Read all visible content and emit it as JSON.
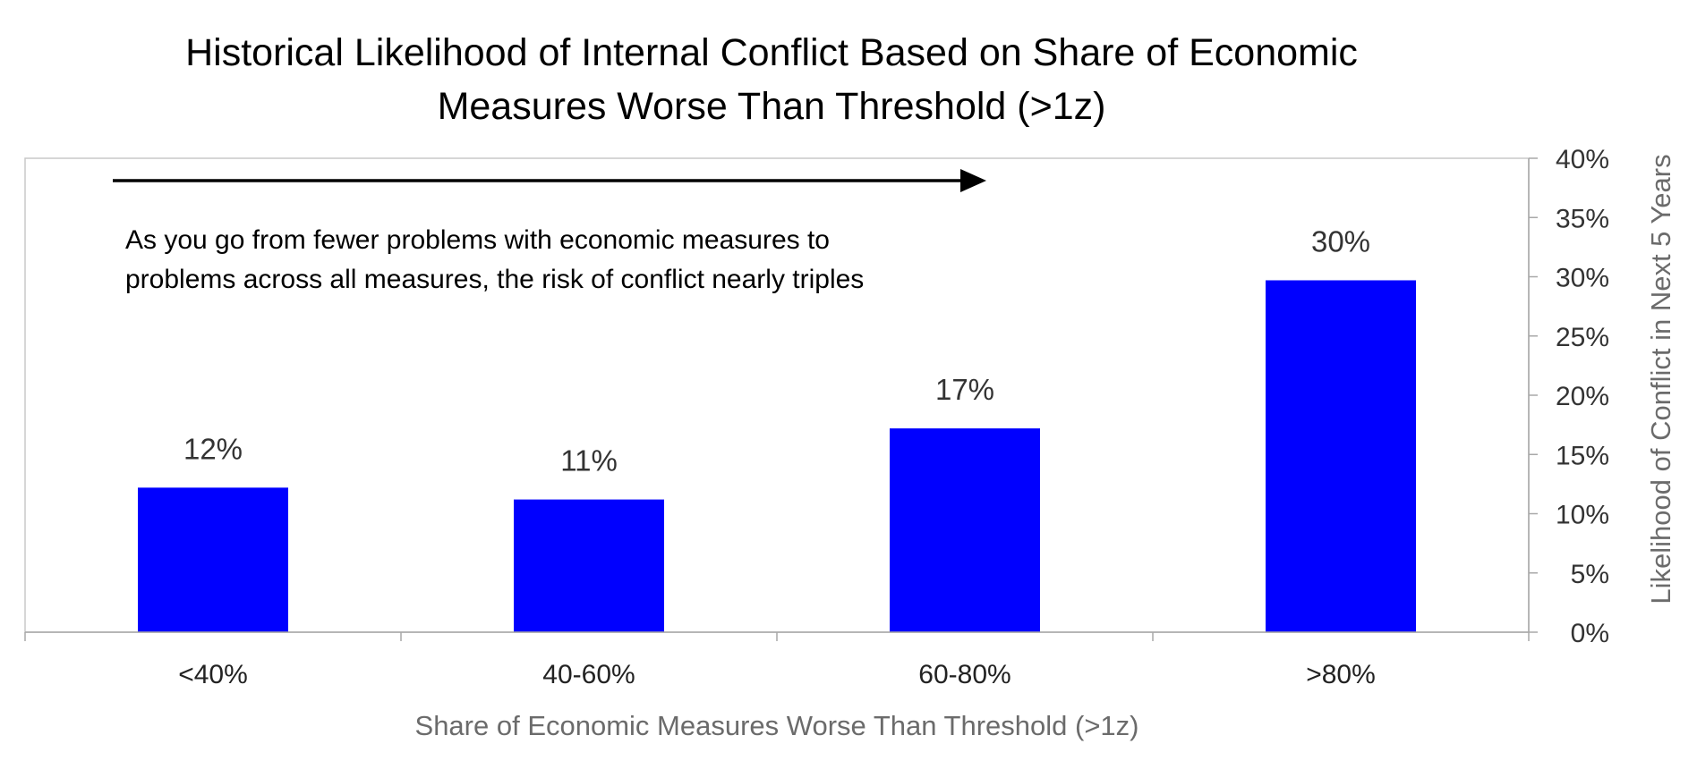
{
  "chart_data": {
    "type": "bar",
    "title_lines": [
      "Historical Likelihood of Internal Conflict Based on Share of Economic",
      "Measures Worse Than Threshold (>1z)"
    ],
    "annotation_lines": [
      "As you go from fewer problems with economic measures to",
      "problems across all measures, the risk of conflict nearly triples"
    ],
    "categories": [
      "<40%",
      "40-60%",
      "60-80%",
      ">80%"
    ],
    "values": [
      0.122,
      0.112,
      0.172,
      0.297
    ],
    "data_labels": [
      "12%",
      "11%",
      "17%",
      "30%"
    ],
    "bar_color": "#0000ff",
    "xlabel": "Share of Economic Measures Worse Than Threshold (>1z)",
    "ylabel": "Likelihood of Conflict in Next 5 Years",
    "ylim": [
      0,
      0.4
    ],
    "y_ticks": [
      0,
      0.05,
      0.1,
      0.15,
      0.2,
      0.25,
      0.3,
      0.35,
      0.4
    ],
    "y_tick_labels": [
      "0%",
      "5%",
      "10%",
      "15%",
      "20%",
      "25%",
      "30%",
      "35%",
      "40%"
    ],
    "y_axis_side": "right",
    "grid": false,
    "legend": "none",
    "arrow_direction": "right"
  }
}
